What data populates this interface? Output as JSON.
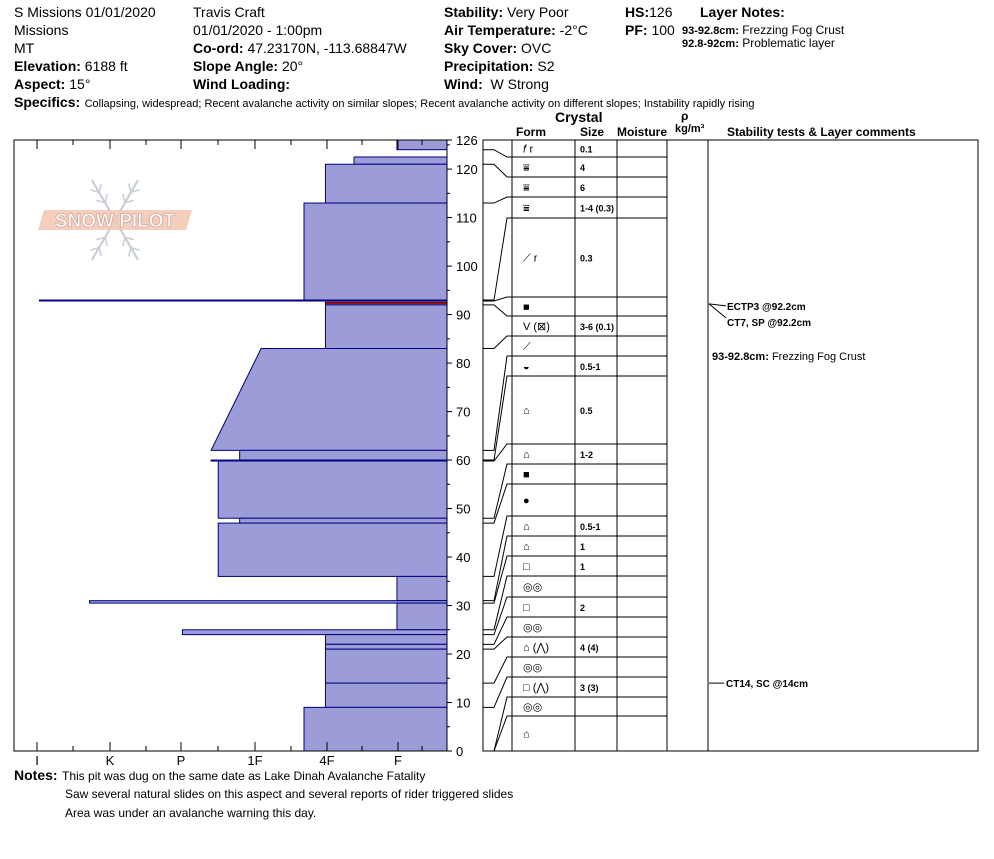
{
  "header": {
    "site_date": "S Missions 01/01/2020",
    "range": "Missions",
    "state": "MT",
    "elevation_label": "Elevation:",
    "elevation_value": "6188 ft",
    "aspect_label": "Aspect:",
    "aspect_value": "15°",
    "observer": "Travis  Craft",
    "datetime": "01/01/2020 - 1:00pm",
    "coord_label": "Co-ord:",
    "coord_value": "47.23170N, -113.68847W",
    "slope_label": "Slope Angle:",
    "slope_value": "20°",
    "wind_loading_label": "Wind Loading:",
    "wind_loading_value": "",
    "stability_label": "Stability:",
    "stability_value": "Very Poor",
    "air_temp_label": "Air Temperature:",
    "air_temp_value": "-2°C",
    "sky_label": "Sky Cover:",
    "sky_value": "OVC",
    "precip_label": "Precipitation:",
    "precip_value": "S2",
    "wind_label": "Wind:",
    "wind_value": "W Strong",
    "hs_label": "HS:",
    "hs_value": "126",
    "pf_label": "PF:",
    "pf_value": "100",
    "layer_notes_title": "Layer Notes:",
    "layer_notes": [
      {
        "range": "93-92.8cm:",
        "text": "Frezzing Fog Crust"
      },
      {
        "range": "92.8-92cm:",
        "text": "Problematic layer"
      }
    ],
    "specifics_label": "Specifics:",
    "specifics_value": "Collapsing, widespread;  Recent avalanche activity on similar slopes;  Recent avalanche activity on different slopes;  Instability rapidly rising"
  },
  "logo_text": "SNOW PILOT",
  "table_headers": {
    "crystal": "Crystal",
    "form": "Form",
    "size": "Size",
    "moisture": "Moisture",
    "rho": "ρ",
    "density_unit": "kg/m³",
    "stability": "Stability tests & Layer comments"
  },
  "notes": {
    "label": "Notes:",
    "lines": [
      "This pit was dug on the same date as Lake Dinah Avalanche Fatality",
      "Saw several natural slides on this aspect and several reports of rider triggered slides",
      "Area was under an avalanche warning this day."
    ]
  },
  "stability_comments": [
    {
      "text": "ECTP3 @92.2cm",
      "depth": 92.2
    },
    {
      "text": "CT7, SP @92.2cm",
      "depth": 92.2
    },
    {
      "text": "CT14, SC @14cm",
      "depth": 14
    }
  ],
  "layer_comment": {
    "range": "93-92.8cm:",
    "text": "Frezzing Fog Crust"
  },
  "chart_data": {
    "type": "bar",
    "title": "",
    "xlabel": "",
    "ylabel": "",
    "ylim": [
      0,
      126
    ],
    "y_ticks": [
      0,
      10,
      20,
      30,
      40,
      50,
      60,
      70,
      80,
      90,
      100,
      110,
      120,
      126
    ],
    "hardness_categories": [
      "I",
      "K",
      "P",
      "1F",
      "4F",
      "F"
    ],
    "hardness_scale_note": "F=1, 4F=2, 1F=3, P=4, K=5, I=6",
    "layers": [
      {
        "bottom": 124,
        "top": 126,
        "hardness": 0.7
      },
      {
        "bottom": 121,
        "top": 122.5,
        "hardness": 1.3
      },
      {
        "bottom": 113,
        "top": 121,
        "hardness": 1.7
      },
      {
        "bottom": 93,
        "top": 113,
        "hardness": 2.0
      },
      {
        "bottom": 92.8,
        "top": 93,
        "hardness": 5.7
      },
      {
        "bottom": 92,
        "top": 92.8,
        "hardness": 1.7
      },
      {
        "bottom": 83,
        "top": 92,
        "hardness": 1.7
      },
      {
        "bottom": 62,
        "top": 83,
        "hardness": 2.6,
        "hardness_top": 3.3
      },
      {
        "bottom": 60,
        "top": 62,
        "hardness": 2.9
      },
      {
        "bottom": 59.8,
        "top": 60,
        "hardness": 3.3
      },
      {
        "bottom": 48,
        "top": 59.8,
        "hardness": 3.2
      },
      {
        "bottom": 47,
        "top": 48,
        "hardness": 2.9
      },
      {
        "bottom": 36,
        "top": 47,
        "hardness": 3.2
      },
      {
        "bottom": 31,
        "top": 36,
        "hardness": 0.7
      },
      {
        "bottom": 30.5,
        "top": 31,
        "hardness": 5.0
      },
      {
        "bottom": 25,
        "top": 30.5,
        "hardness": 0.7
      },
      {
        "bottom": 24,
        "top": 25,
        "hardness": 3.7
      },
      {
        "bottom": 22,
        "top": 24,
        "hardness": 1.7
      },
      {
        "bottom": 21,
        "top": 22,
        "hardness": 1.7
      },
      {
        "bottom": 14,
        "top": 21,
        "hardness": 1.7
      },
      {
        "bottom": 9,
        "top": 14,
        "hardness": 1.7
      },
      {
        "bottom": 0,
        "top": 9,
        "hardness": 2.0
      }
    ],
    "crystal_rows": [
      {
        "form": "𝑓 r",
        "size": "0.1"
      },
      {
        "form": "⩸",
        "size": "4"
      },
      {
        "form": "⩸",
        "size": "6"
      },
      {
        "form": "⩸",
        "size": "1-4 (0.3)"
      },
      {
        "form": "⟋ r",
        "size": "0.3"
      },
      {
        "form": "■",
        "size": ""
      },
      {
        "form": "V (⊠)",
        "size": "3-6 (0.1)"
      },
      {
        "form": "⟋",
        "size": ""
      },
      {
        "form": "◒",
        "size": "0.5-1"
      },
      {
        "form": "⌂",
        "size": "0.5"
      },
      {
        "form": "⌂",
        "size": "1-2"
      },
      {
        "form": "■",
        "size": ""
      },
      {
        "form": "●",
        "size": ""
      },
      {
        "form": "⌂",
        "size": "0.5-1"
      },
      {
        "form": "⌂",
        "size": "1"
      },
      {
        "form": "□",
        "size": "1"
      },
      {
        "form": "◎◎",
        "size": ""
      },
      {
        "form": "□",
        "size": "2"
      },
      {
        "form": "◎◎",
        "size": ""
      },
      {
        "form": "⌂ (⋀)",
        "size": "4 (4)"
      },
      {
        "form": "◎◎",
        "size": ""
      },
      {
        "form": "□ (⋀)",
        "size": "3 (3)"
      },
      {
        "form": "◎◎",
        "size": ""
      },
      {
        "form": "⌂",
        "size": ""
      }
    ],
    "colors": {
      "layer_fill": "#9c9cd8",
      "layer_edge": "#000080",
      "crust": "#8b0000"
    }
  }
}
